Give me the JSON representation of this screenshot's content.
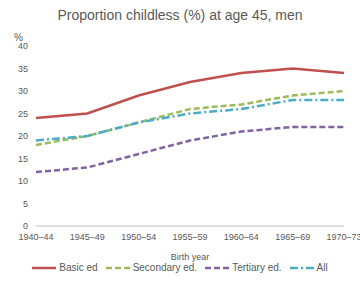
{
  "chart_data": {
    "type": "line",
    "title": "Proportion childless (%) at age 45, men",
    "x_label": "Birth year",
    "y_label": "%",
    "categories": [
      "1940–44",
      "1945–49",
      "1950–54",
      "1955–59",
      "1960–64",
      "1965–69",
      "1970–73"
    ],
    "series": [
      {
        "name": "Basic ed",
        "color": "#c0504d",
        "line_style": "solid",
        "values": [
          24,
          25,
          29,
          32,
          34,
          35,
          34
        ]
      },
      {
        "name": "Secondary ed.",
        "color": "#9bbb59",
        "line_style": "dashed",
        "values": [
          18,
          20,
          23,
          26,
          27,
          29,
          30
        ]
      },
      {
        "name": "Tertiary ed.",
        "color": "#8064a2",
        "line_style": "dashed",
        "values": [
          12,
          13,
          16,
          19,
          21,
          22,
          22
        ]
      },
      {
        "name": "All",
        "color": "#4bacc6",
        "line_style": "dashdot",
        "values": [
          19,
          20,
          23,
          25,
          26,
          28,
          28
        ]
      }
    ],
    "ylim": [
      0,
      40
    ],
    "yticks": [
      0,
      5,
      10,
      15,
      20,
      25,
      30,
      35,
      40
    ],
    "grid": false,
    "legend": "bottom"
  }
}
